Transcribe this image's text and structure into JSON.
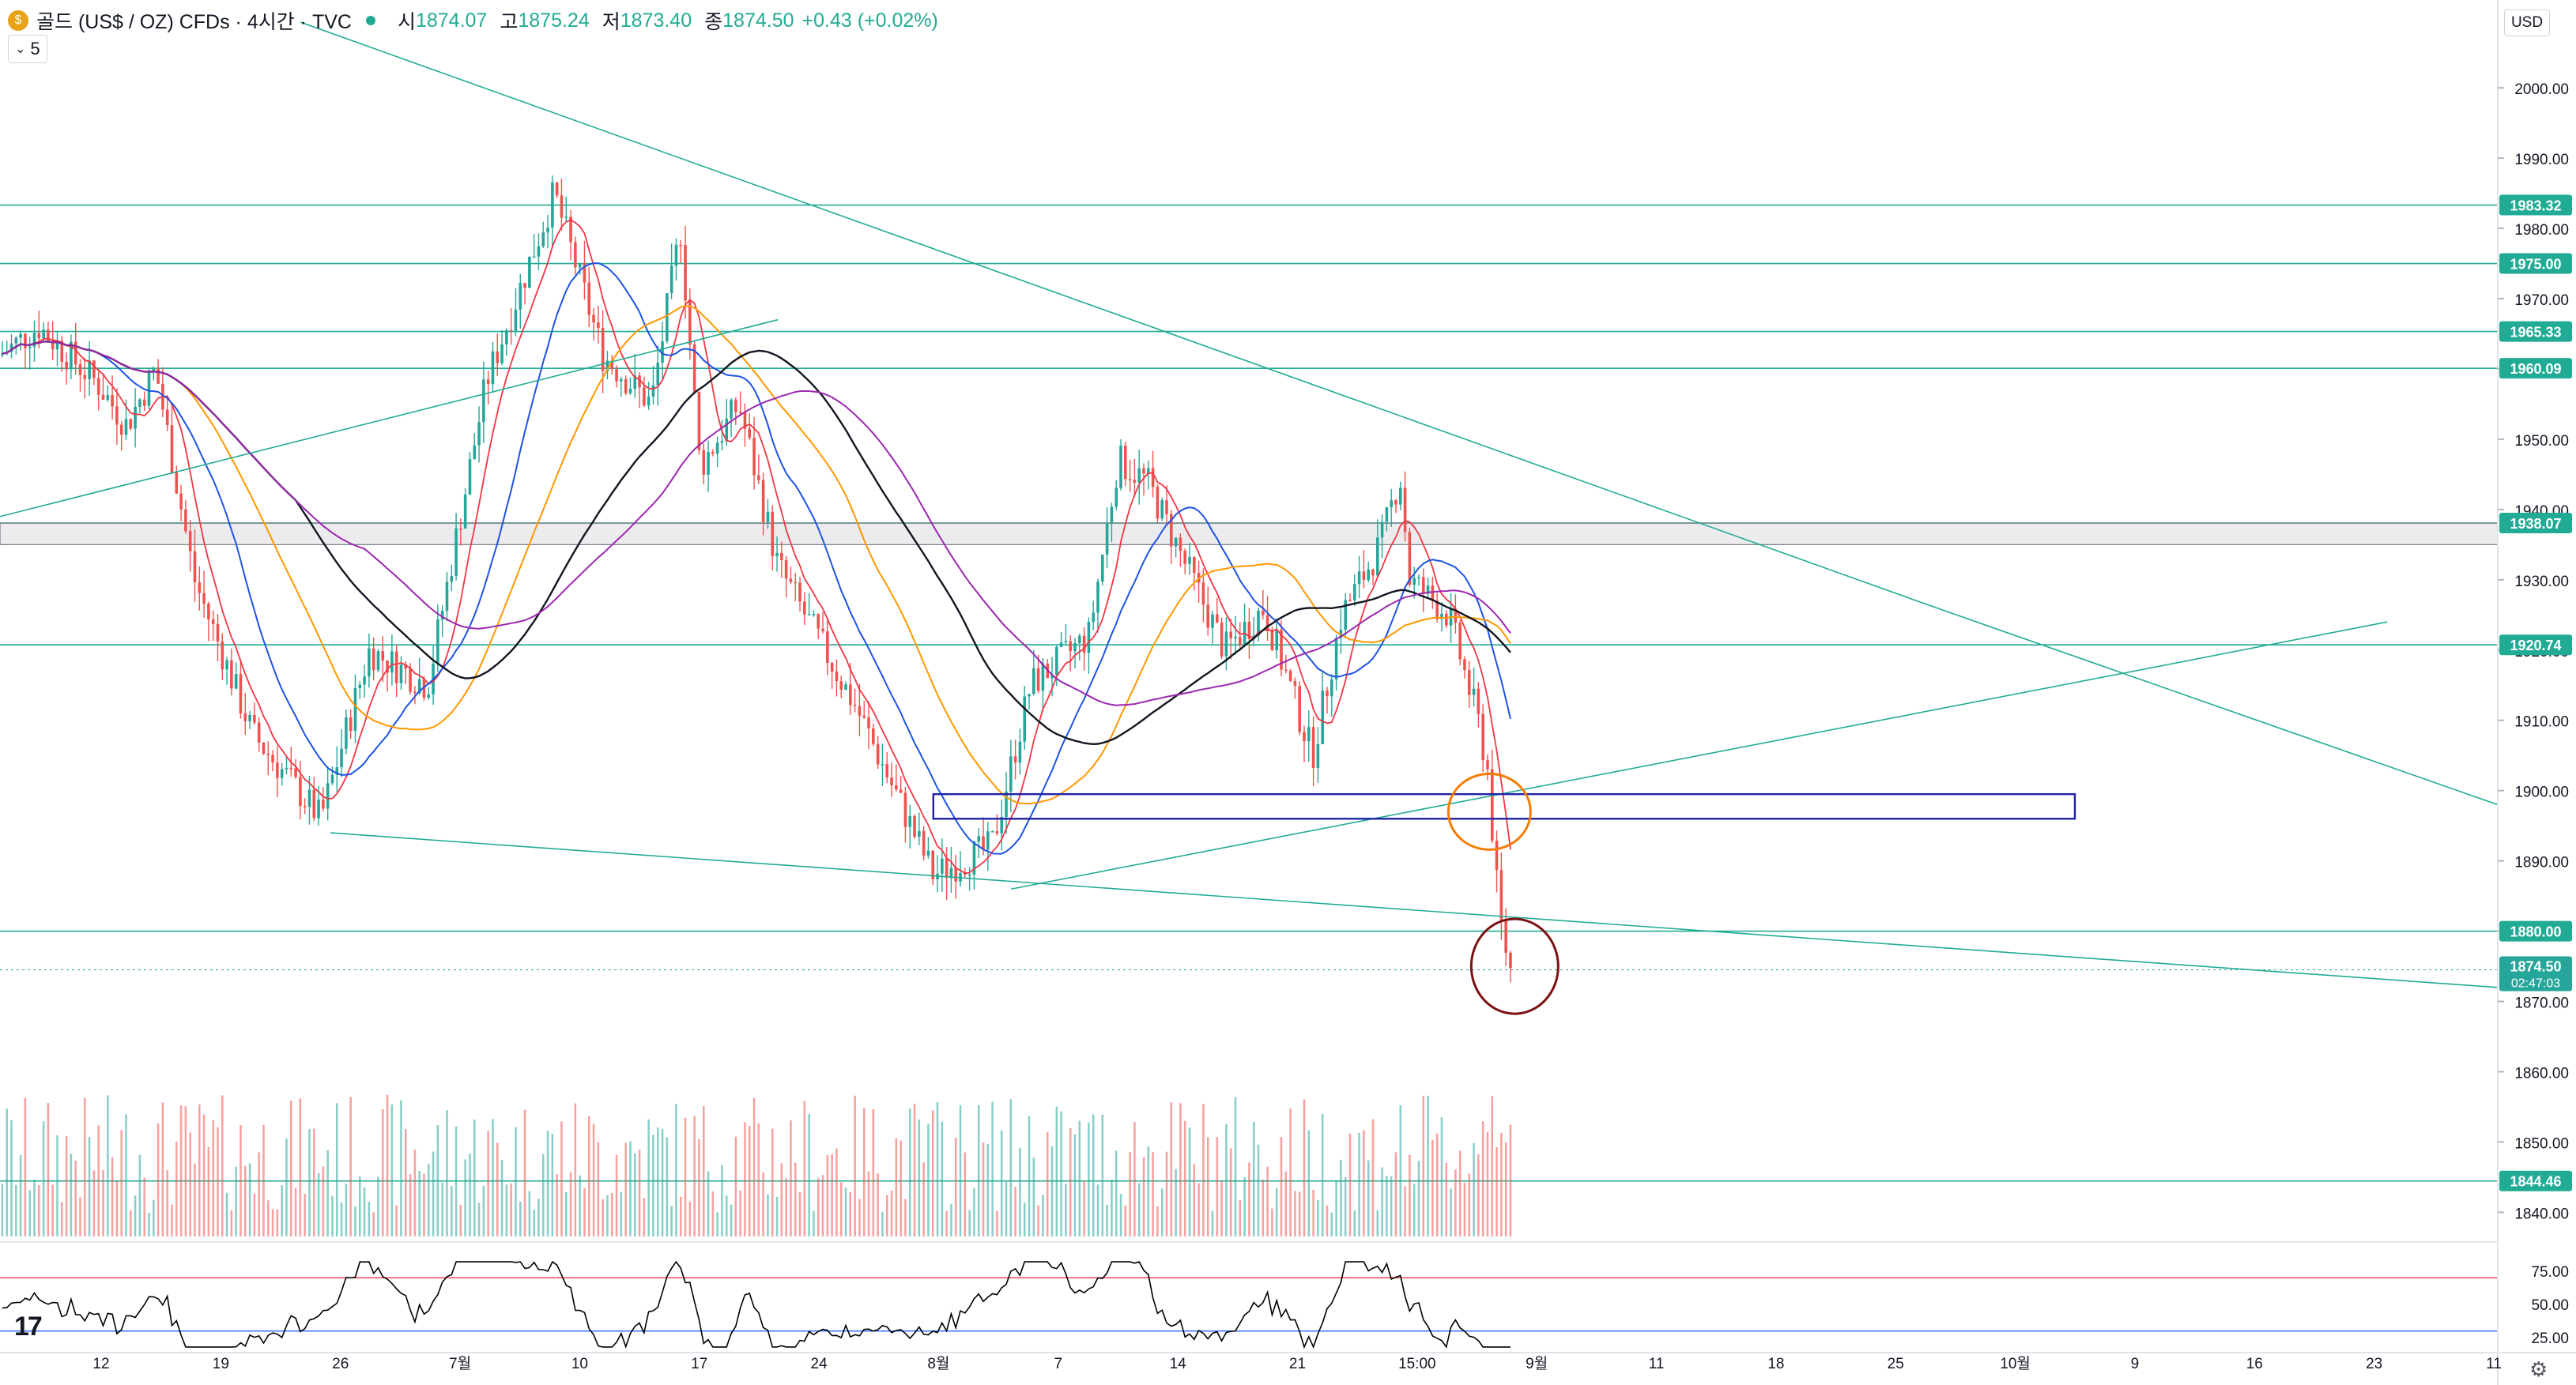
{
  "header": {
    "symbol_icon": "coin-icon",
    "title": "골드 (US$ / OZ) CFDs · 4시간 · TVC",
    "open_label": "시",
    "open": "1874.07",
    "high_label": "고",
    "high": "1875.24",
    "low_label": "저",
    "low": "1873.40",
    "close_label": "종",
    "close": "1874.50",
    "change": "+0.43 (+0.02%)",
    "sub_value": "5"
  },
  "currency": "USD",
  "colors": {
    "up": "#26a69a",
    "down": "#ef5350",
    "hline": "#22ab94",
    "ma_red": "#f23645",
    "ma_blue": "#1e53e5",
    "ma_orange": "#ff9800",
    "ma_black": "#131722",
    "ma_purple": "#9c27b0",
    "rsi_line": "#000000",
    "rsi_band": "#f23645",
    "rsi_low_band": "#2962ff",
    "box": "#1e22aa",
    "circle_orange": "#f57c00",
    "circle_dark": "#7b1113"
  },
  "chart_data": {
    "type": "candlestick",
    "price_scale": {
      "min": 1836,
      "max": 2008,
      "ticks": [
        "2000.00",
        "1990.00",
        "1980.00",
        "1970.00",
        "1960.00",
        "1950.00",
        "1940.00",
        "1930.00",
        "1920.00",
        "1910.00",
        "1900.00",
        "1890.00",
        "1880.00",
        "1870.00",
        "1860.00",
        "1850.00",
        "1840.00"
      ]
    },
    "x_ticks": [
      "12",
      "19",
      "26",
      "7월",
      "10",
      "17",
      "24",
      "8월",
      "7",
      "14",
      "21",
      "15:00",
      "9월",
      "11",
      "18",
      "25",
      "10월",
      "9",
      "16",
      "23",
      "11"
    ],
    "horizontal_levels": [
      {
        "price": 1983.32,
        "label": "1983.32"
      },
      {
        "price": 1975.0,
        "label": "1975.00"
      },
      {
        "price": 1965.33,
        "label": "1965.33"
      },
      {
        "price": 1960.09,
        "label": "1960.09"
      },
      {
        "price": 1938.07,
        "label": "1938.07"
      },
      {
        "price": 1920.74,
        "label": "1920.74"
      },
      {
        "price": 1880.0,
        "label": "1880.00"
      },
      {
        "price": 1844.46,
        "label": "1844.46"
      }
    ],
    "zone": {
      "top": 1938.07,
      "bottom": 1935.0
    },
    "last_price": {
      "value": "1874.50",
      "countdown": "02:47:03"
    },
    "key_points": [
      {
        "t": 0,
        "price": 1962
      },
      {
        "t": 0.02,
        "price": 1966
      },
      {
        "t": 0.05,
        "price": 1958
      },
      {
        "t": 0.065,
        "price": 1952
      },
      {
        "t": 0.08,
        "price": 1960
      },
      {
        "t": 0.1,
        "price": 1930
      },
      {
        "t": 0.13,
        "price": 1908
      },
      {
        "t": 0.165,
        "price": 1896
      },
      {
        "t": 0.19,
        "price": 1920
      },
      {
        "t": 0.22,
        "price": 1915
      },
      {
        "t": 0.25,
        "price": 1958
      },
      {
        "t": 0.285,
        "price": 1985
      },
      {
        "t": 0.31,
        "price": 1962
      },
      {
        "t": 0.335,
        "price": 1955
      },
      {
        "t": 0.35,
        "price": 1980
      },
      {
        "t": 0.36,
        "price": 1946
      },
      {
        "t": 0.38,
        "price": 1955
      },
      {
        "t": 0.4,
        "price": 1932
      },
      {
        "t": 0.44,
        "price": 1912
      },
      {
        "t": 0.48,
        "price": 1888
      },
      {
        "t": 0.51,
        "price": 1892
      },
      {
        "t": 0.53,
        "price": 1915
      },
      {
        "t": 0.56,
        "price": 1922
      },
      {
        "t": 0.575,
        "price": 1947
      },
      {
        "t": 0.59,
        "price": 1944
      },
      {
        "t": 0.61,
        "price": 1932
      },
      {
        "t": 0.63,
        "price": 1920
      },
      {
        "t": 0.65,
        "price": 1926
      },
      {
        "t": 0.675,
        "price": 1905
      },
      {
        "t": 0.69,
        "price": 1925
      },
      {
        "t": 0.71,
        "price": 1935
      },
      {
        "t": 0.72,
        "price": 1945
      },
      {
        "t": 0.725,
        "price": 1930
      },
      {
        "t": 0.745,
        "price": 1925
      },
      {
        "t": 0.76,
        "price": 1910
      },
      {
        "t": 0.765,
        "price": 1903
      },
      {
        "t": 0.771,
        "price": 1882
      },
      {
        "t": 0.778,
        "price": 1873
      }
    ],
    "volume": {
      "ref_level": "1844.46"
    },
    "rsi": {
      "ticks": [
        "75.00",
        "50.00",
        "25.00"
      ],
      "levels": [
        70,
        30
      ],
      "min": 15,
      "max": 85
    },
    "annotations": {
      "upper_trendline": "descending resistance",
      "box": {
        "top": 1899.5,
        "bottom": 1896.0
      },
      "circles": [
        "orange",
        "dark-red"
      ]
    }
  }
}
